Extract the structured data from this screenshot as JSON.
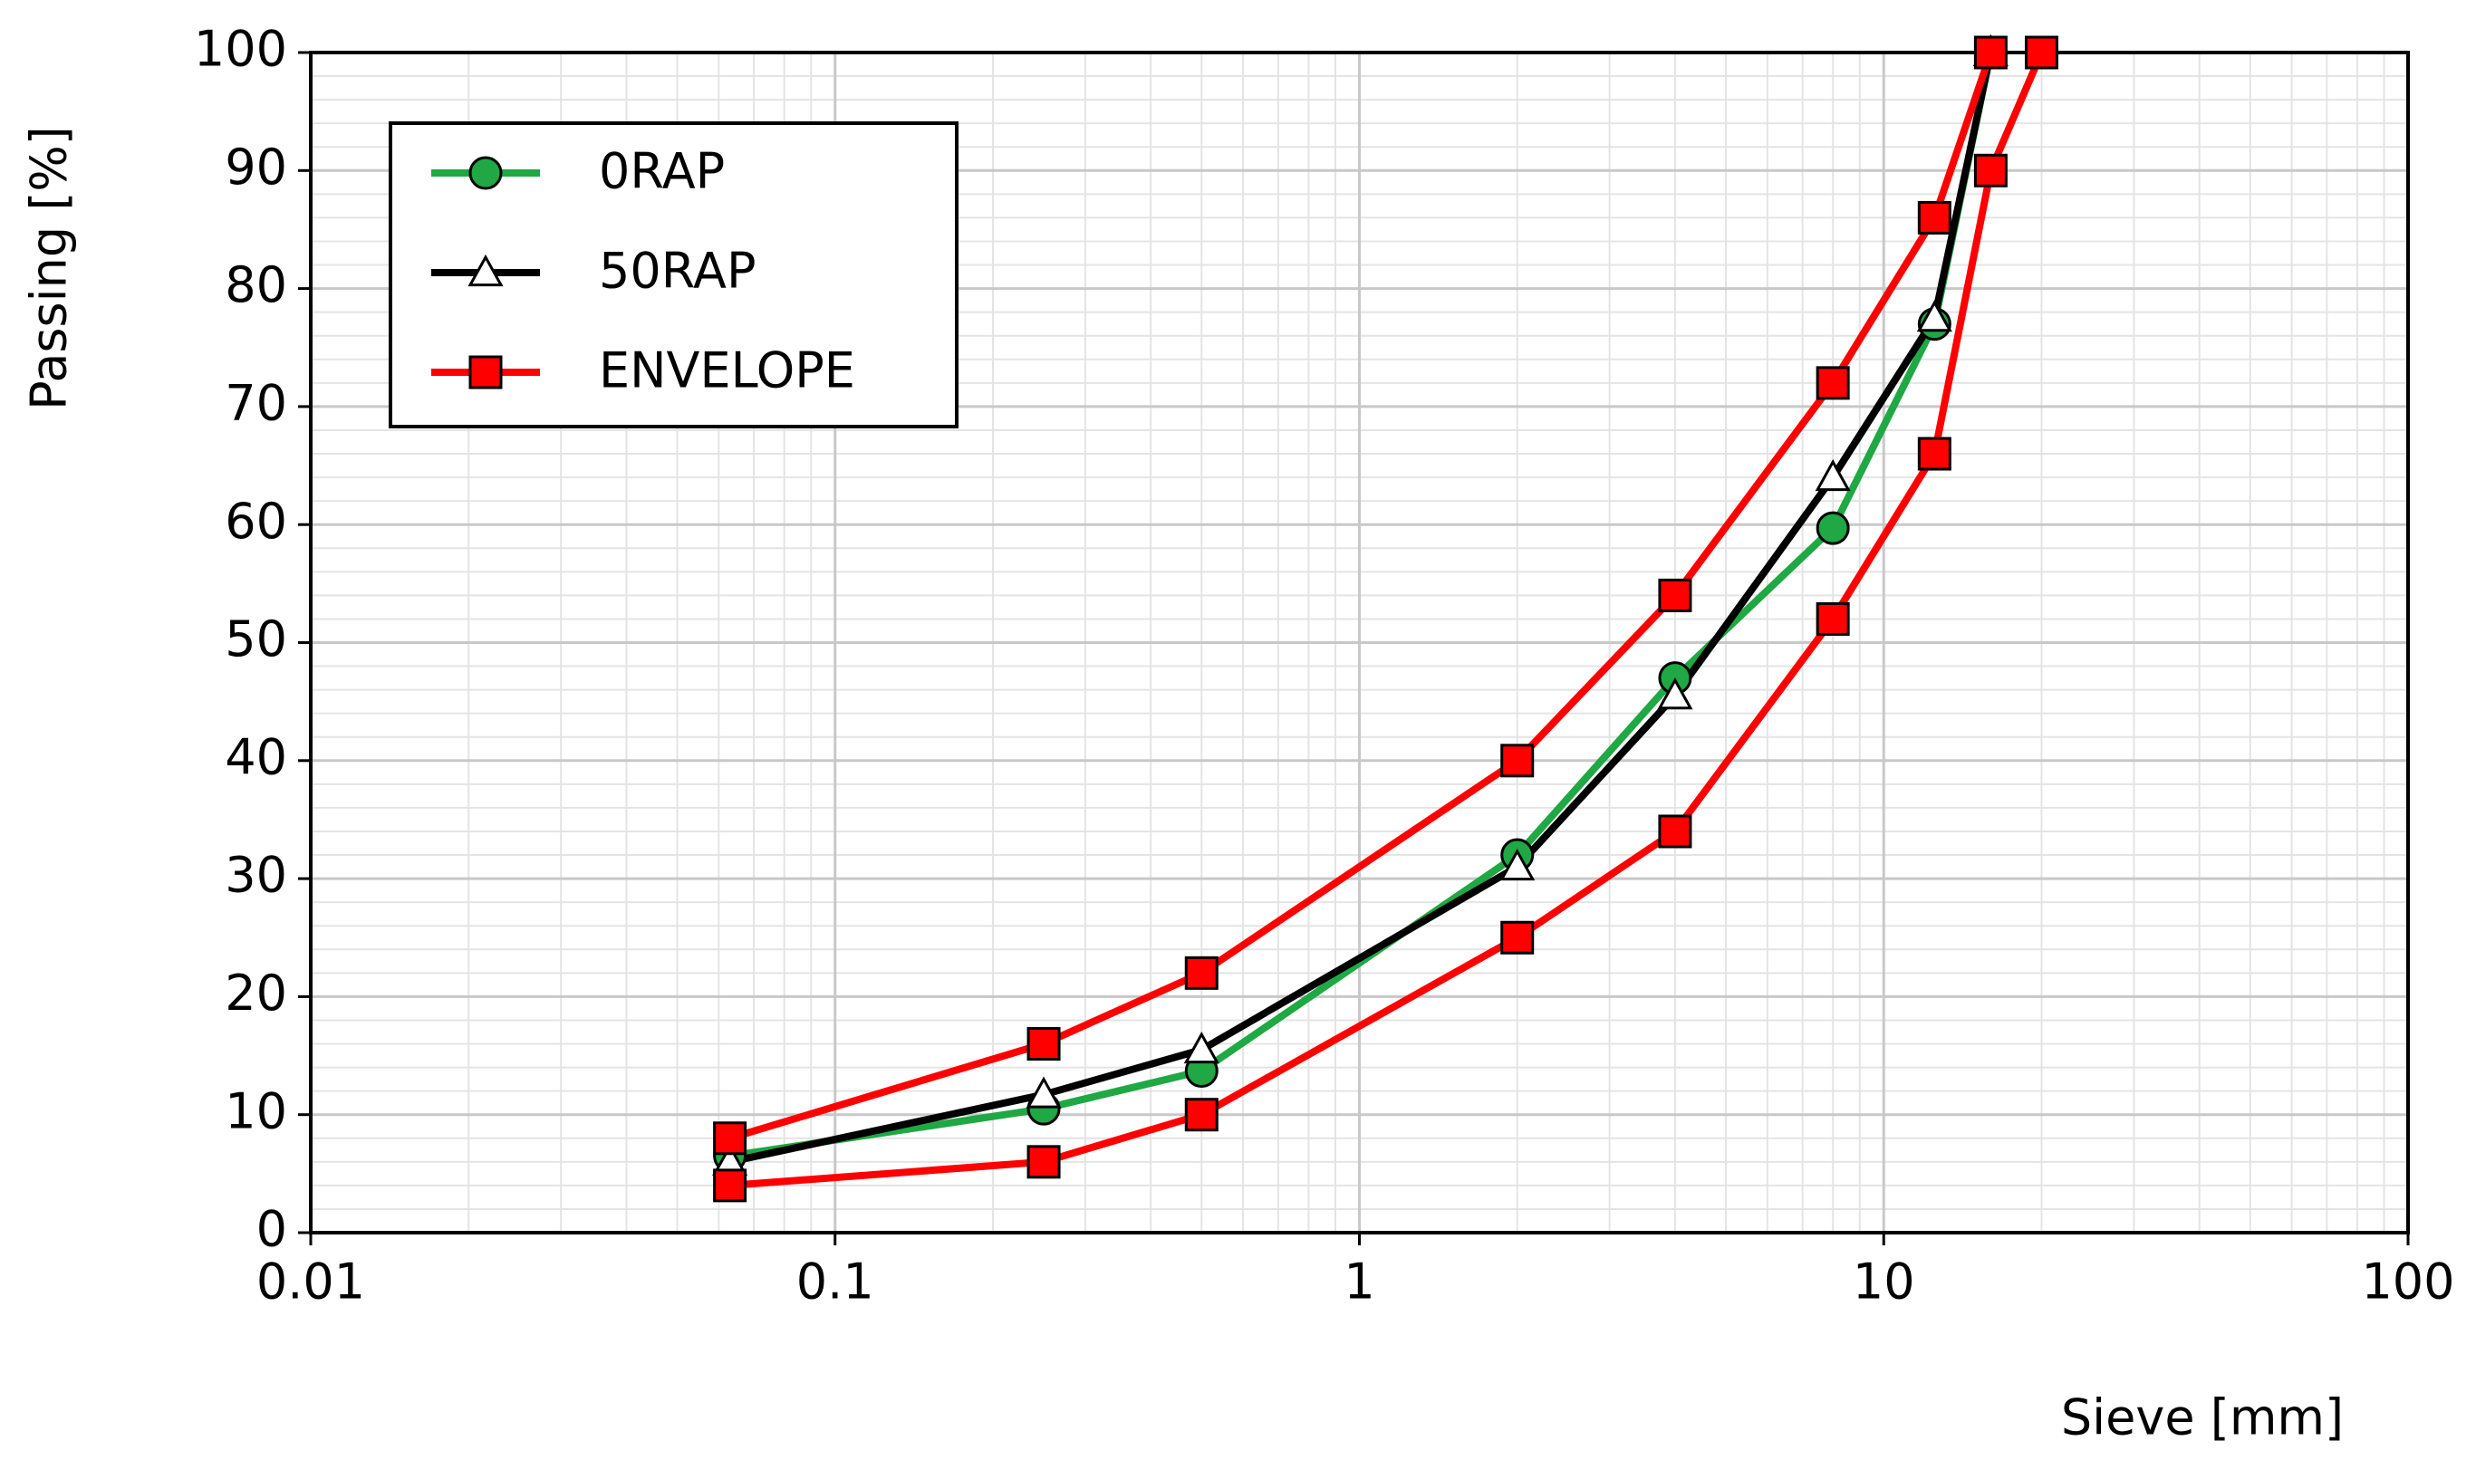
{
  "chart_data": {
    "type": "line",
    "x_label": "Sieve [mm]",
    "y_label": "Passing [%]",
    "xscale": "log",
    "xlim": [
      0.01,
      100
    ],
    "xticks": [
      0.01,
      0.1,
      1,
      10,
      100
    ],
    "ylim": [
      0,
      100
    ],
    "yticks": [
      0,
      10,
      20,
      30,
      40,
      50,
      60,
      70,
      80,
      90,
      100
    ],
    "grid": true,
    "minor_grid": true,
    "legend": "upper left",
    "series": [
      {
        "name": "0RAP",
        "color": "#1fa843",
        "marker": "circle",
        "marker_color": "#1fa843",
        "x": [
          0.063,
          0.25,
          0.5,
          2,
          4,
          8,
          12.5,
          16
        ],
        "values": [
          6.5,
          10.5,
          13.7,
          32,
          47,
          59.7,
          77,
          100
        ]
      },
      {
        "name": "50RAP",
        "color": "#000000",
        "marker": "triangle",
        "marker_color": "#ffffff",
        "x": [
          0.063,
          0.25,
          0.5,
          2,
          4,
          8,
          12.5,
          16
        ],
        "values": [
          6,
          11.7,
          15.5,
          31,
          45.5,
          64,
          77.5,
          100
        ]
      },
      {
        "name": "ENVELOPE",
        "color": "#ff0000",
        "marker": "square",
        "marker_color": "#ff0000",
        "x": [
          0.063,
          0.25,
          0.5,
          2,
          4,
          8,
          12.5,
          16
        ],
        "values": [
          8,
          16,
          22,
          40,
          54,
          72,
          86,
          100
        ]
      },
      {
        "color": "#ff0000",
        "marker": "square",
        "marker_color": "#ff0000",
        "x": [
          0.063,
          0.25,
          0.5,
          2,
          4,
          8,
          12.5,
          16,
          20
        ],
        "values": [
          4,
          6,
          10,
          25,
          34,
          52,
          66,
          90,
          100
        ]
      }
    ]
  }
}
